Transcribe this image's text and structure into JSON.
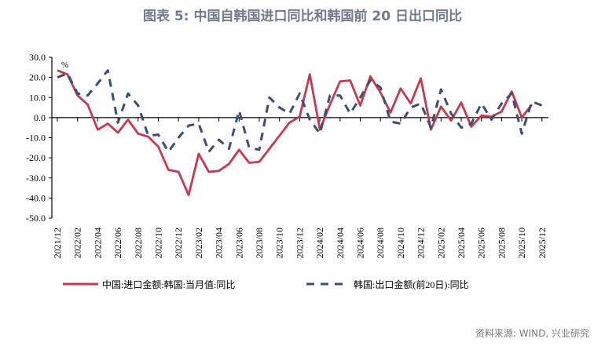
{
  "title": "图表 5: 中国自韩国进口同比和韩国前 20 日出口同比",
  "source": "资料来源: WIND, 兴业研究",
  "chart_data": {
    "type": "line",
    "unit_label": "%",
    "ylim": [
      -50,
      30
    ],
    "yticks": [
      "30.0",
      "20.0",
      "10.0",
      "0.0",
      "-10.0",
      "-20.0",
      "-30.0",
      "-40.0",
      "-50.0"
    ],
    "ytick_values": [
      30,
      20,
      10,
      0,
      -10,
      -20,
      -30,
      -40,
      -50
    ],
    "categories": [
      "2021/12",
      "2022/01",
      "2022/02",
      "2022/03",
      "2022/04",
      "2022/05",
      "2022/06",
      "2022/07",
      "2022/08",
      "2022/09",
      "2022/10",
      "2022/11",
      "2022/12",
      "2023/01",
      "2023/02",
      "2023/03",
      "2023/04",
      "2023/05",
      "2023/06",
      "2023/07",
      "2023/08",
      "2023/09",
      "2023/10",
      "2023/11",
      "2023/12",
      "2024/01",
      "2024/02",
      "2024/03",
      "2024/04",
      "2024/05",
      "2024/06",
      "2024/07",
      "2024/08",
      "2024/09",
      "2024/10",
      "2024/11",
      "2024/12",
      "2025/01",
      "2025/02",
      "2025/03",
      "2025/04",
      "2025/05",
      "2025/06",
      "2025/07",
      "2025/08",
      "2025/09",
      "2025/10",
      "2025/11",
      "2025/12"
    ],
    "xtick_labels": [
      "2021/12",
      "2022/02",
      "2022/04",
      "2022/06",
      "2022/08",
      "2022/10",
      "2022/12",
      "2023/02",
      "2023/04",
      "2023/06",
      "2023/08",
      "2023/10",
      "2023/12",
      "2024/02",
      "2024/04",
      "2024/06",
      "2024/08",
      "2024/10",
      "2024/12",
      "2025/02",
      "2025/04",
      "2025/06",
      "2025/08",
      "2025/10",
      "2025/12"
    ],
    "legend_placement": "bottom",
    "series": [
      {
        "name": "中国:进口金额:韩国:当月值:同比",
        "color": "#c8384f",
        "style": "solid",
        "values": [
          23.5,
          21.5,
          11,
          6.5,
          -6,
          -3,
          -7.5,
          -1,
          -8,
          -9.5,
          -14.5,
          -26,
          -27,
          -38.5,
          -18,
          -27,
          -26.5,
          -23,
          -16,
          -22.5,
          -22,
          -15.5,
          -9,
          -2.5,
          0.5,
          21.5,
          -6,
          6.5,
          18,
          18.5,
          6,
          20.5,
          12.5,
          2.5,
          14.5,
          7,
          19.5,
          -6,
          5.5,
          -1.5,
          7.5,
          -4.5,
          1,
          0.5,
          3,
          13,
          0,
          6.5,
          null
        ]
      },
      {
        "name": "韩国:出口金额(前20日):同比",
        "color": "#3d4f6e",
        "style": "dashed",
        "values": [
          20,
          22,
          12,
          11,
          17,
          23.5,
          -2.5,
          12,
          6,
          -9,
          -8.5,
          -17,
          -10,
          -4,
          -3,
          -17,
          -11,
          -15.5,
          3.5,
          -15,
          -16,
          10,
          5,
          2,
          12,
          -1,
          -8,
          11,
          11,
          2,
          10,
          18.5,
          15,
          -2,
          -3,
          5,
          7,
          -5,
          14,
          2,
          -5,
          -3,
          7,
          -1,
          7,
          12,
          -8,
          8,
          6
        ]
      }
    ]
  }
}
